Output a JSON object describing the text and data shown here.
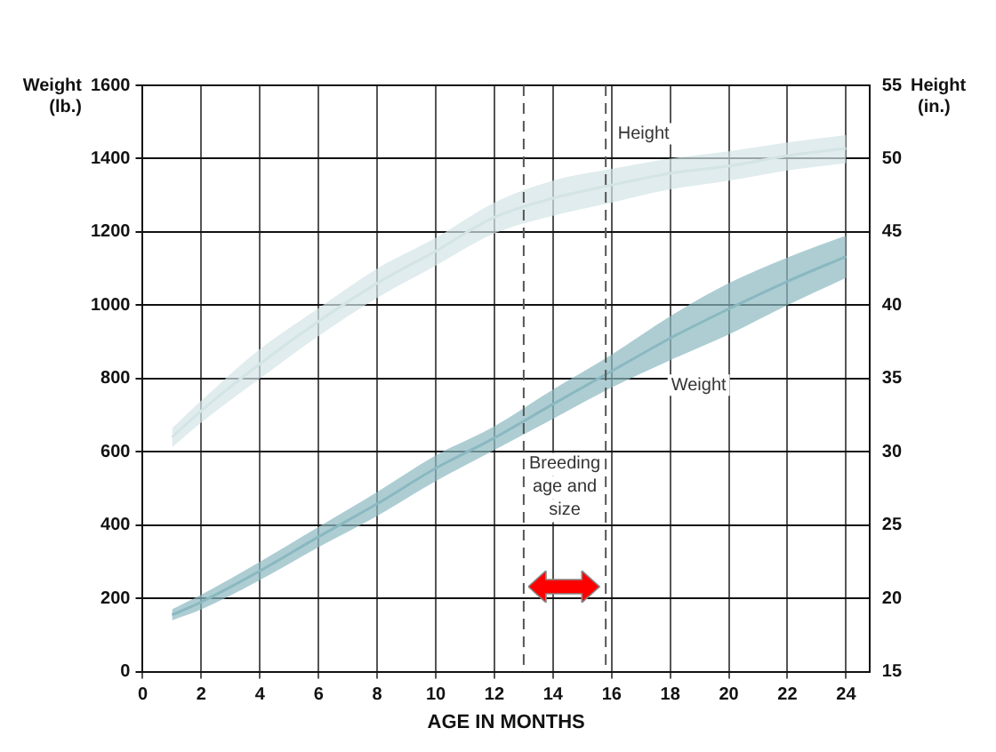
{
  "chart_data": {
    "type": "line",
    "xlabel": "AGE IN MONTHS",
    "ylabel": "Weight (lb.)",
    "y2label": "Height (in.)",
    "x": [
      1,
      2,
      4,
      6,
      8,
      10,
      12,
      14,
      16,
      18,
      20,
      22,
      24
    ],
    "series": [
      {
        "name": "Weight",
        "color": "#8ab8c0",
        "values": [
          155,
          190,
          275,
          368,
          458,
          555,
          638,
          730,
          820,
          910,
          990,
          1065,
          1133
        ],
        "lower": [
          140,
          170,
          250,
          340,
          425,
          520,
          605,
          690,
          775,
          850,
          920,
          1000,
          1075
        ],
        "upper": [
          170,
          210,
          300,
          395,
          490,
          590,
          670,
          770,
          865,
          970,
          1060,
          1130,
          1190
        ]
      },
      {
        "name": "Height",
        "color": "#d3e4e6",
        "axis": "y2",
        "values": [
          31,
          32.8,
          36,
          38.9,
          41.5,
          43.7,
          46,
          47.3,
          48.2,
          49,
          49.5,
          50.2,
          50.7
        ],
        "lower": [
          30.3,
          32,
          35,
          37.9,
          40.5,
          42.7,
          44.9,
          46.1,
          47,
          47.9,
          48.5,
          49.2,
          49.7
        ],
        "upper": [
          31.6,
          33.5,
          37,
          39.8,
          42.5,
          44.6,
          47,
          48.5,
          49.3,
          50,
          50.5,
          51.1,
          51.6
        ]
      }
    ],
    "xlim": [
      0,
      24.8
    ],
    "xticks": [
      0,
      2,
      4,
      6,
      8,
      10,
      12,
      14,
      16,
      18,
      20,
      22,
      24
    ],
    "ylim": [
      0,
      1600
    ],
    "yticks": [
      0,
      200,
      400,
      600,
      800,
      1000,
      1200,
      1400,
      1600
    ],
    "y2lim": [
      15,
      55
    ],
    "y2ticks": [
      15,
      20,
      25,
      30,
      35,
      40,
      45,
      50,
      55
    ],
    "ref_lines": [
      {
        "axis": "x",
        "value": 13,
        "line_style": "dashed"
      },
      {
        "axis": "x",
        "value": 15.8,
        "line_style": "dashed"
      }
    ],
    "annotations": [
      "Breeding age and size"
    ],
    "grid": true,
    "legend": false
  }
}
